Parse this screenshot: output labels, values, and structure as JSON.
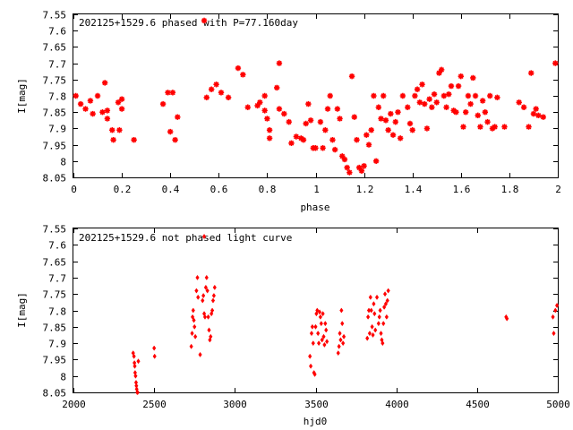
{
  "chart_data": [
    {
      "type": "scatter",
      "title": "202125+1529.6 phased with P=77.160day",
      "xlabel": "phase",
      "ylabel": "I[mag]",
      "xlim": [
        0,
        2
      ],
      "ylim": [
        7.55,
        8.05
      ],
      "y_inverted": true,
      "grid": false,
      "marker": "star",
      "color": "#ff0000",
      "x_ticks": [
        "0",
        "0.2",
        "0.4",
        "0.6",
        "0.8",
        "1",
        "1.2",
        "1.4",
        "1.6",
        "1.8",
        "2"
      ],
      "y_ticks": [
        "7.55",
        "7.6",
        "7.65",
        "7.7",
        "7.75",
        "7.8",
        "7.85",
        "7.9",
        "7.95",
        "8",
        "8.05"
      ],
      "legend_marker_phase": 0.54,
      "points": [
        [
          0.01,
          7.8
        ],
        [
          0.03,
          7.825
        ],
        [
          0.05,
          7.84
        ],
        [
          0.07,
          7.815
        ],
        [
          0.08,
          7.855
        ],
        [
          0.1,
          7.8
        ],
        [
          0.12,
          7.85
        ],
        [
          0.13,
          7.76
        ],
        [
          0.14,
          7.87
        ],
        [
          0.14,
          7.845
        ],
        [
          0.16,
          7.905
        ],
        [
          0.165,
          7.935
        ],
        [
          0.19,
          7.905
        ],
        [
          0.185,
          7.82
        ],
        [
          0.2,
          7.81
        ],
        [
          0.2,
          7.84
        ],
        [
          0.25,
          7.935
        ],
        [
          0.37,
          7.825
        ],
        [
          0.39,
          7.79
        ],
        [
          0.4,
          7.91
        ],
        [
          0.41,
          7.79
        ],
        [
          0.42,
          7.935
        ],
        [
          0.43,
          7.865
        ],
        [
          0.55,
          7.805
        ],
        [
          0.57,
          7.78
        ],
        [
          0.59,
          7.765
        ],
        [
          0.61,
          7.79
        ],
        [
          0.64,
          7.805
        ],
        [
          0.68,
          7.715
        ],
        [
          0.7,
          7.735
        ],
        [
          0.72,
          7.835
        ],
        [
          0.76,
          7.83
        ],
        [
          0.77,
          7.82
        ],
        [
          0.79,
          7.8
        ],
        [
          0.79,
          7.845
        ],
        [
          0.8,
          7.87
        ],
        [
          0.81,
          7.905
        ],
        [
          0.81,
          7.93
        ],
        [
          0.84,
          7.775
        ],
        [
          0.85,
          7.7
        ],
        [
          0.85,
          7.84
        ],
        [
          0.87,
          7.855
        ],
        [
          0.89,
          7.88
        ],
        [
          0.9,
          7.945
        ],
        [
          0.92,
          7.925
        ],
        [
          0.94,
          7.93
        ],
        [
          0.95,
          7.935
        ],
        [
          0.96,
          7.885
        ],
        [
          0.97,
          7.825
        ],
        [
          0.98,
          7.875
        ],
        [
          0.99,
          7.96
        ],
        [
          1.0,
          7.96
        ],
        [
          1.02,
          7.88
        ],
        [
          1.03,
          7.96
        ],
        [
          1.04,
          7.905
        ],
        [
          1.05,
          7.84
        ],
        [
          1.06,
          7.8
        ],
        [
          1.07,
          7.935
        ],
        [
          1.08,
          7.965
        ],
        [
          1.09,
          7.84
        ],
        [
          1.1,
          7.87
        ],
        [
          1.11,
          7.985
        ],
        [
          1.12,
          7.995
        ],
        [
          1.13,
          8.02
        ],
        [
          1.14,
          8.035
        ],
        [
          1.15,
          7.74
        ],
        [
          1.16,
          7.865
        ],
        [
          1.17,
          7.935
        ],
        [
          1.18,
          8.02
        ],
        [
          1.19,
          8.03
        ],
        [
          1.2,
          8.015
        ],
        [
          1.21,
          7.92
        ],
        [
          1.22,
          7.95
        ],
        [
          1.23,
          7.905
        ],
        [
          1.24,
          7.8
        ],
        [
          1.25,
          8.0
        ],
        [
          1.26,
          7.835
        ],
        [
          1.27,
          7.87
        ],
        [
          1.28,
          7.8
        ],
        [
          1.29,
          7.875
        ],
        [
          1.3,
          7.905
        ],
        [
          1.31,
          7.855
        ],
        [
          1.32,
          7.92
        ],
        [
          1.33,
          7.88
        ],
        [
          1.34,
          7.85
        ],
        [
          1.35,
          7.93
        ],
        [
          1.36,
          7.8
        ],
        [
          1.38,
          7.835
        ],
        [
          1.39,
          7.885
        ],
        [
          1.4,
          7.905
        ],
        [
          1.41,
          7.8
        ],
        [
          1.42,
          7.78
        ],
        [
          1.43,
          7.82
        ],
        [
          1.44,
          7.765
        ],
        [
          1.45,
          7.825
        ],
        [
          1.46,
          7.9
        ],
        [
          1.47,
          7.81
        ],
        [
          1.48,
          7.835
        ],
        [
          1.49,
          7.795
        ],
        [
          1.5,
          7.82
        ],
        [
          1.51,
          7.73
        ],
        [
          1.52,
          7.72
        ],
        [
          1.53,
          7.8
        ],
        [
          1.54,
          7.835
        ],
        [
          1.55,
          7.795
        ],
        [
          1.56,
          7.77
        ],
        [
          1.57,
          7.845
        ],
        [
          1.58,
          7.85
        ],
        [
          1.59,
          7.77
        ],
        [
          1.6,
          7.74
        ],
        [
          1.61,
          7.895
        ],
        [
          1.62,
          7.85
        ],
        [
          1.63,
          7.8
        ],
        [
          1.64,
          7.825
        ],
        [
          1.65,
          7.745
        ],
        [
          1.66,
          7.8
        ],
        [
          1.67,
          7.86
        ],
        [
          1.68,
          7.895
        ],
        [
          1.69,
          7.815
        ],
        [
          1.7,
          7.85
        ],
        [
          1.71,
          7.88
        ],
        [
          1.72,
          7.8
        ],
        [
          1.73,
          7.9
        ],
        [
          1.74,
          7.895
        ],
        [
          1.75,
          7.805
        ],
        [
          1.78,
          7.895
        ],
        [
          1.84,
          7.82
        ],
        [
          1.86,
          7.835
        ],
        [
          1.88,
          7.895
        ],
        [
          1.89,
          7.73
        ],
        [
          1.9,
          7.855
        ],
        [
          1.91,
          7.84
        ],
        [
          1.92,
          7.86
        ],
        [
          1.94,
          7.865
        ],
        [
          1.99,
          7.7
        ]
      ]
    },
    {
      "type": "scatter",
      "title": "202125+1529.6 not phased light curve",
      "xlabel": "hjd0",
      "ylabel": "I[mag]",
      "xlim": [
        2000,
        5000
      ],
      "ylim": [
        7.55,
        8.05
      ],
      "y_inverted": true,
      "grid": false,
      "marker": "diamond",
      "color": "#ff0000",
      "x_ticks": [
        "2000",
        "2500",
        "3000",
        "3500",
        "4000",
        "4500",
        "5000"
      ],
      "y_ticks": [
        "7.55",
        "7.6",
        "7.65",
        "7.7",
        "7.75",
        "7.8",
        "7.85",
        "7.9",
        "7.95",
        "8",
        "8.05"
      ],
      "legend_marker_hjd0": 2810,
      "points": [
        [
          2370,
          7.93
        ],
        [
          2375,
          7.94
        ],
        [
          2378,
          7.96
        ],
        [
          2380,
          7.97
        ],
        [
          2382,
          7.99
        ],
        [
          2385,
          8.0
        ],
        [
          2388,
          8.02
        ],
        [
          2390,
          8.03
        ],
        [
          2392,
          8.04
        ],
        [
          2395,
          8.05
        ],
        [
          2398,
          8.05
        ],
        [
          2402,
          7.955
        ],
        [
          2500,
          7.915
        ],
        [
          2503,
          7.94
        ],
        [
          2730,
          7.91
        ],
        [
          2735,
          7.87
        ],
        [
          2738,
          7.82
        ],
        [
          2742,
          7.8
        ],
        [
          2746,
          7.83
        ],
        [
          2750,
          7.85
        ],
        [
          2755,
          7.88
        ],
        [
          2762,
          7.74
        ],
        [
          2768,
          7.7
        ],
        [
          2772,
          7.76
        ],
        [
          2785,
          7.935
        ],
        [
          2800,
          7.77
        ],
        [
          2805,
          7.755
        ],
        [
          2810,
          7.81
        ],
        [
          2815,
          7.82
        ],
        [
          2820,
          7.73
        ],
        [
          2825,
          7.7
        ],
        [
          2830,
          7.74
        ],
        [
          2835,
          7.82
        ],
        [
          2840,
          7.86
        ],
        [
          2845,
          7.89
        ],
        [
          2850,
          7.88
        ],
        [
          2855,
          7.81
        ],
        [
          2860,
          7.8
        ],
        [
          2865,
          7.77
        ],
        [
          2870,
          7.755
        ],
        [
          2875,
          7.73
        ],
        [
          3465,
          7.94
        ],
        [
          3470,
          7.97
        ],
        [
          3475,
          7.87
        ],
        [
          3480,
          7.85
        ],
        [
          3485,
          7.9
        ],
        [
          3490,
          7.99
        ],
        [
          3495,
          7.995
        ],
        [
          3500,
          7.85
        ],
        [
          3505,
          7.81
        ],
        [
          3510,
          7.8
        ],
        [
          3515,
          7.87
        ],
        [
          3520,
          7.9
        ],
        [
          3525,
          7.805
        ],
        [
          3530,
          7.82
        ],
        [
          3535,
          7.84
        ],
        [
          3540,
          7.89
        ],
        [
          3545,
          7.81
        ],
        [
          3550,
          7.88
        ],
        [
          3555,
          7.905
        ],
        [
          3560,
          7.84
        ],
        [
          3565,
          7.86
        ],
        [
          3570,
          7.895
        ],
        [
          3640,
          7.93
        ],
        [
          3645,
          7.91
        ],
        [
          3650,
          7.87
        ],
        [
          3655,
          7.89
        ],
        [
          3660,
          7.8
        ],
        [
          3665,
          7.84
        ],
        [
          3670,
          7.9
        ],
        [
          3675,
          7.88
        ],
        [
          3820,
          7.885
        ],
        [
          3825,
          7.82
        ],
        [
          3830,
          7.8
        ],
        [
          3835,
          7.87
        ],
        [
          3840,
          7.76
        ],
        [
          3845,
          7.8
        ],
        [
          3850,
          7.85
        ],
        [
          3855,
          7.875
        ],
        [
          3860,
          7.78
        ],
        [
          3865,
          7.81
        ],
        [
          3870,
          7.86
        ],
        [
          3880,
          7.76
        ],
        [
          3890,
          7.84
        ],
        [
          3895,
          7.82
        ],
        [
          3900,
          7.8
        ],
        [
          3905,
          7.87
        ],
        [
          3910,
          7.89
        ],
        [
          3915,
          7.9
        ],
        [
          3920,
          7.84
        ],
        [
          3925,
          7.79
        ],
        [
          3930,
          7.75
        ],
        [
          3935,
          7.78
        ],
        [
          3940,
          7.82
        ],
        [
          3945,
          7.77
        ],
        [
          3950,
          7.74
        ],
        [
          4680,
          7.82
        ],
        [
          4685,
          7.825
        ],
        [
          4970,
          7.82
        ],
        [
          4975,
          7.87
        ],
        [
          4985,
          7.8
        ],
        [
          4995,
          7.785
        ]
      ]
    }
  ]
}
